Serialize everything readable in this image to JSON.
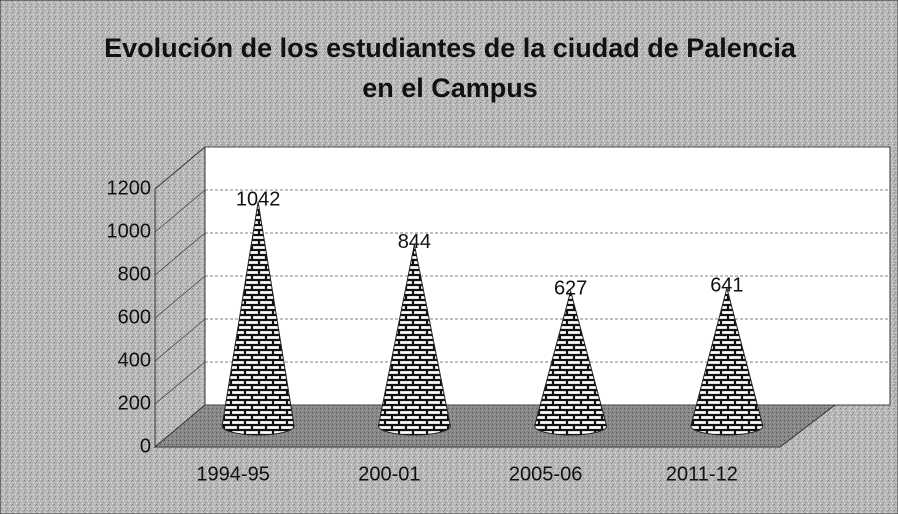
{
  "chart_data": {
    "type": "cone",
    "title": "Evolución de los estudiantes de la ciudad de Palencia en el Campus",
    "categories": [
      "1994-95",
      "200-01",
      "2005-06",
      "2011-12"
    ],
    "values": [
      1042,
      844,
      627,
      641
    ],
    "ylim": [
      0,
      1200
    ],
    "yticks": [
      0,
      200,
      400,
      600,
      800,
      1000,
      1200
    ],
    "grid": true,
    "color": "#222222"
  }
}
